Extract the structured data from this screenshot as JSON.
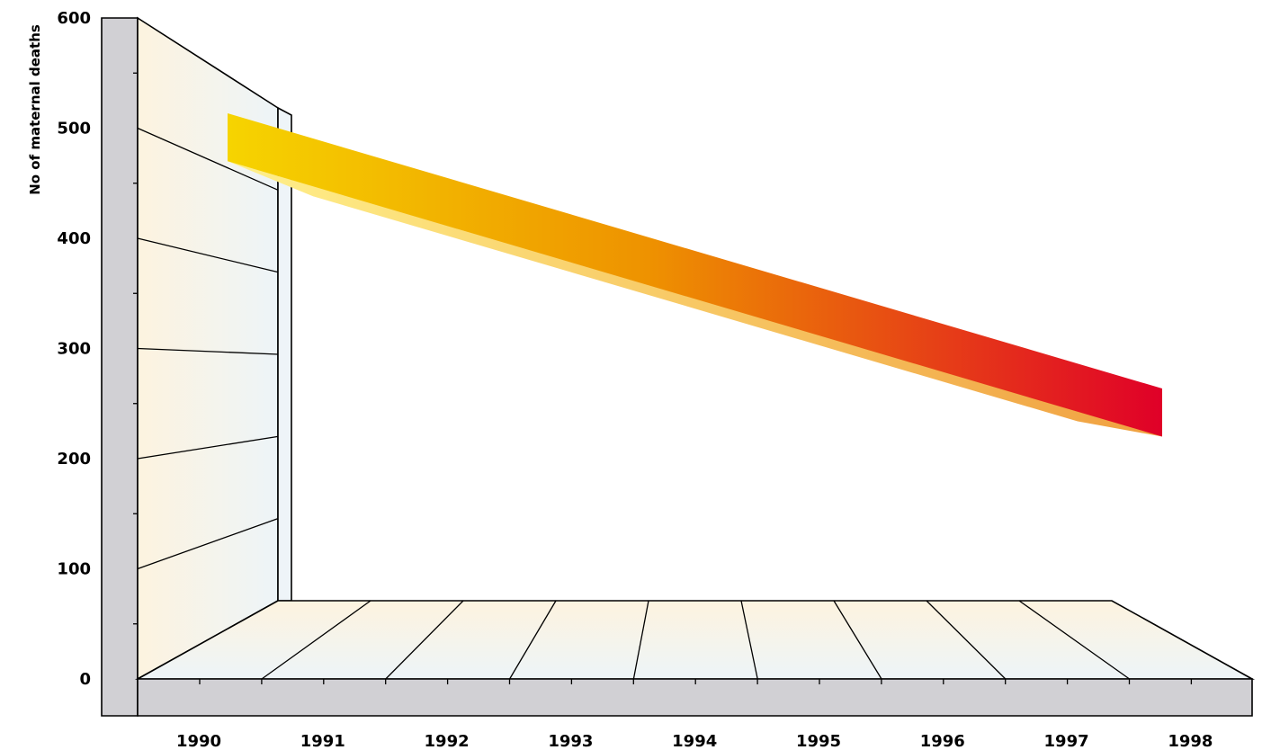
{
  "chart_data": {
    "type": "line",
    "style": "3d-ribbon",
    "title": "",
    "ylabel": "No of maternal deaths",
    "xlabel": "",
    "ylim": [
      0,
      600
    ],
    "yticks": [
      0,
      100,
      200,
      300,
      400,
      500,
      600
    ],
    "categories": [
      "1990",
      "1991",
      "1992",
      "1993",
      "1994",
      "1995",
      "1996",
      "1997",
      "1998"
    ],
    "series": [
      {
        "x": [
          1990,
          1998
        ],
        "values": [
          470,
          220
        ]
      }
    ],
    "grid": true,
    "legend": "none",
    "colors": {
      "ribbon_start": "#f6d400",
      "ribbon_mid": "#ee9200",
      "ribbon_end": "#e00028",
      "ribbon_underside_start": "#fff08a",
      "ribbon_underside_end": "#f0a040",
      "wall_fill_warm": "#fdf3df",
      "wall_fill_cool": "#edf4f8",
      "frame_grey": "#d1d0d4"
    }
  }
}
